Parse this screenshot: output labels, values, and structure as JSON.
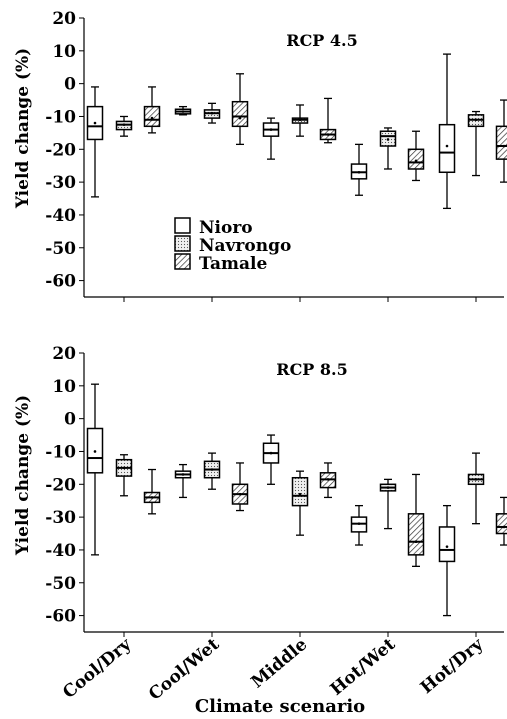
{
  "chart_data": [
    {
      "type": "boxplot",
      "title": "RCP 4.5",
      "ylabel": "Yield change (%)",
      "xlabel": "",
      "ylim": [
        -65,
        20
      ],
      "yticks": [
        20,
        10,
        0,
        -10,
        -20,
        -30,
        -40,
        -50,
        -60
      ],
      "categories": [
        "Cool/Dry",
        "Cool/Wet",
        "Middle",
        "Hot/Wet",
        "Hot/Dry"
      ],
      "show_category_labels": false,
      "legend": {
        "position": "inside-lower-left",
        "entries": [
          "Nioro",
          "Navrongo",
          "Tamale"
        ]
      },
      "series": [
        {
          "name": "Nioro",
          "pattern": "open",
          "boxes": [
            {
              "min": -34.5,
              "q1": -17,
              "median": -13,
              "mean": -12,
              "q3": -7,
              "max": -1
            },
            {
              "min": -9.5,
              "q1": -9.2,
              "median": -8.5,
              "mean": -8.5,
              "q3": -7.8,
              "max": -7
            },
            {
              "min": -23,
              "q1": -16,
              "median": -14,
              "mean": -14,
              "q3": -12,
              "max": -10.5
            },
            {
              "min": -34,
              "q1": -29,
              "median": -27,
              "mean": -27,
              "q3": -24.5,
              "max": -18.5
            },
            {
              "min": -38,
              "q1": -27,
              "median": -21,
              "mean": -19,
              "q3": -12.5,
              "max": 9
            }
          ]
        },
        {
          "name": "Navrongo",
          "pattern": "dotted",
          "boxes": [
            {
              "min": -16,
              "q1": -14,
              "median": -12.5,
              "mean": -12.5,
              "q3": -11.5,
              "max": -10
            },
            {
              "min": -12,
              "q1": -10.5,
              "median": -9,
              "mean": -9,
              "q3": -8,
              "max": -6
            },
            {
              "min": -16,
              "q1": -12,
              "median": -11,
              "mean": -11,
              "q3": -10.5,
              "max": -6.5
            },
            {
              "min": -26,
              "q1": -19,
              "median": -16,
              "mean": -17,
              "q3": -14.5,
              "max": -13.5
            },
            {
              "min": -28,
              "q1": -13,
              "median": -11,
              "mean": -11,
              "q3": -9.5,
              "max": -8.5
            }
          ]
        },
        {
          "name": "Tamale",
          "pattern": "hatched",
          "boxes": [
            {
              "min": -15,
              "q1": -13,
              "median": -11,
              "mean": -10.5,
              "q3": -7,
              "max": -1
            },
            {
              "min": -18.5,
              "q1": -13,
              "median": -10,
              "mean": -10.5,
              "q3": -5.5,
              "max": 3
            },
            {
              "min": -18,
              "q1": -17,
              "median": -15.5,
              "mean": -15.5,
              "q3": -14,
              "max": -4.5
            },
            {
              "min": -29.5,
              "q1": -26,
              "median": -24,
              "mean": -23.5,
              "q3": -20,
              "max": -14.5
            },
            {
              "min": -30,
              "q1": -23,
              "median": -19,
              "mean": -19,
              "q3": -13,
              "max": -5
            }
          ]
        }
      ]
    },
    {
      "type": "boxplot",
      "title": "RCP 8.5",
      "ylabel": "Yield change (%)",
      "xlabel": "Climate scenario",
      "ylim": [
        -65,
        20
      ],
      "yticks": [
        20,
        10,
        0,
        -10,
        -20,
        -30,
        -40,
        -50,
        -60
      ],
      "categories": [
        "Cool/Dry",
        "Cool/Wet",
        "Middle",
        "Hot/Wet",
        "Hot/Dry"
      ],
      "show_category_labels": true,
      "series": [
        {
          "name": "Nioro",
          "pattern": "open",
          "boxes": [
            {
              "min": -41.5,
              "q1": -16.5,
              "median": -12,
              "mean": -10,
              "q3": -3,
              "max": 10.5
            },
            {
              "min": -24,
              "q1": -18,
              "median": -17,
              "mean": -17,
              "q3": -16,
              "max": -14
            },
            {
              "min": -20,
              "q1": -13.5,
              "median": -10.5,
              "mean": -10.5,
              "q3": -7.5,
              "max": -5
            },
            {
              "min": -38.5,
              "q1": -34.5,
              "median": -32,
              "mean": -32,
              "q3": -30,
              "max": -26.5
            },
            {
              "min": -60,
              "q1": -43.5,
              "median": -40,
              "mean": -39,
              "q3": -33,
              "max": -26.5
            }
          ]
        },
        {
          "name": "Navrongo",
          "pattern": "dotted",
          "boxes": [
            {
              "min": -23.5,
              "q1": -17.5,
              "median": -15,
              "mean": -15,
              "q3": -12.5,
              "max": -11
            },
            {
              "min": -21.5,
              "q1": -18,
              "median": -15.5,
              "mean": -15.5,
              "q3": -13,
              "max": -10.5
            },
            {
              "min": -35.5,
              "q1": -26.5,
              "median": -23.5,
              "mean": -23,
              "q3": -18,
              "max": -16
            },
            {
              "min": -33.5,
              "q1": -22,
              "median": -21,
              "mean": -21,
              "q3": -20,
              "max": -18.5
            },
            {
              "min": -32,
              "q1": -20,
              "median": -18.5,
              "mean": -18.5,
              "q3": -17,
              "max": -10.5
            }
          ]
        },
        {
          "name": "Tamale",
          "pattern": "hatched",
          "boxes": [
            {
              "min": -29,
              "q1": -25.5,
              "median": -24,
              "mean": -24,
              "q3": -22.5,
              "max": -15.5
            },
            {
              "min": -28,
              "q1": -26,
              "median": -23,
              "mean": -23,
              "q3": -20,
              "max": -13.5
            },
            {
              "min": -24,
              "q1": -21,
              "median": -18.5,
              "mean": -18.5,
              "q3": -16.5,
              "max": -13.5
            },
            {
              "min": -45,
              "q1": -41.5,
              "median": -37.5,
              "mean": -37.5,
              "q3": -29,
              "max": -17
            },
            {
              "min": -38.5,
              "q1": -35,
              "median": -33,
              "mean": -33,
              "q3": -29,
              "max": -24
            }
          ]
        }
      ]
    }
  ]
}
